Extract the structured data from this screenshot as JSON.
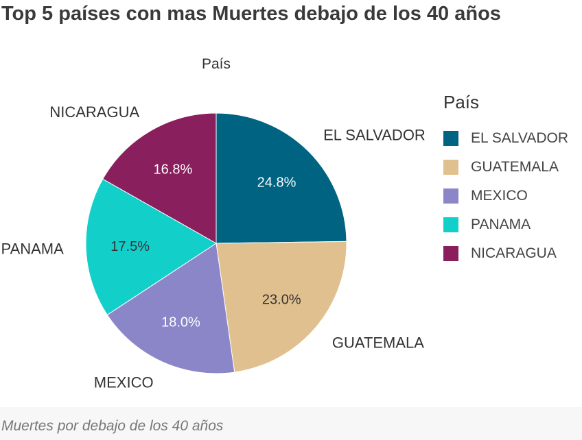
{
  "title": "Top 5 países con mas Muertes debajo de los 40 años",
  "footer": "Muertes por debajo de los 40 años",
  "chart_data": {
    "type": "pie",
    "title": "País",
    "legend": {
      "title": "País",
      "placement": "right"
    },
    "slices": [
      {
        "label": "EL SALVADOR",
        "value": 24.8,
        "display": "24.8%",
        "color": "#006381"
      },
      {
        "label": "GUATEMALA",
        "value": 23.0,
        "display": "23.0%",
        "color": "#e0c08f"
      },
      {
        "label": "MEXICO",
        "value": 18.0,
        "display": "18.0%",
        "color": "#8b86c8"
      },
      {
        "label": "PANAMA",
        "value": 17.5,
        "display": "17.5%",
        "color": "#12cfc9"
      },
      {
        "label": "NICARAGUA",
        "value": 16.8,
        "display": "16.8%",
        "color": "#8a1f5d"
      }
    ]
  }
}
